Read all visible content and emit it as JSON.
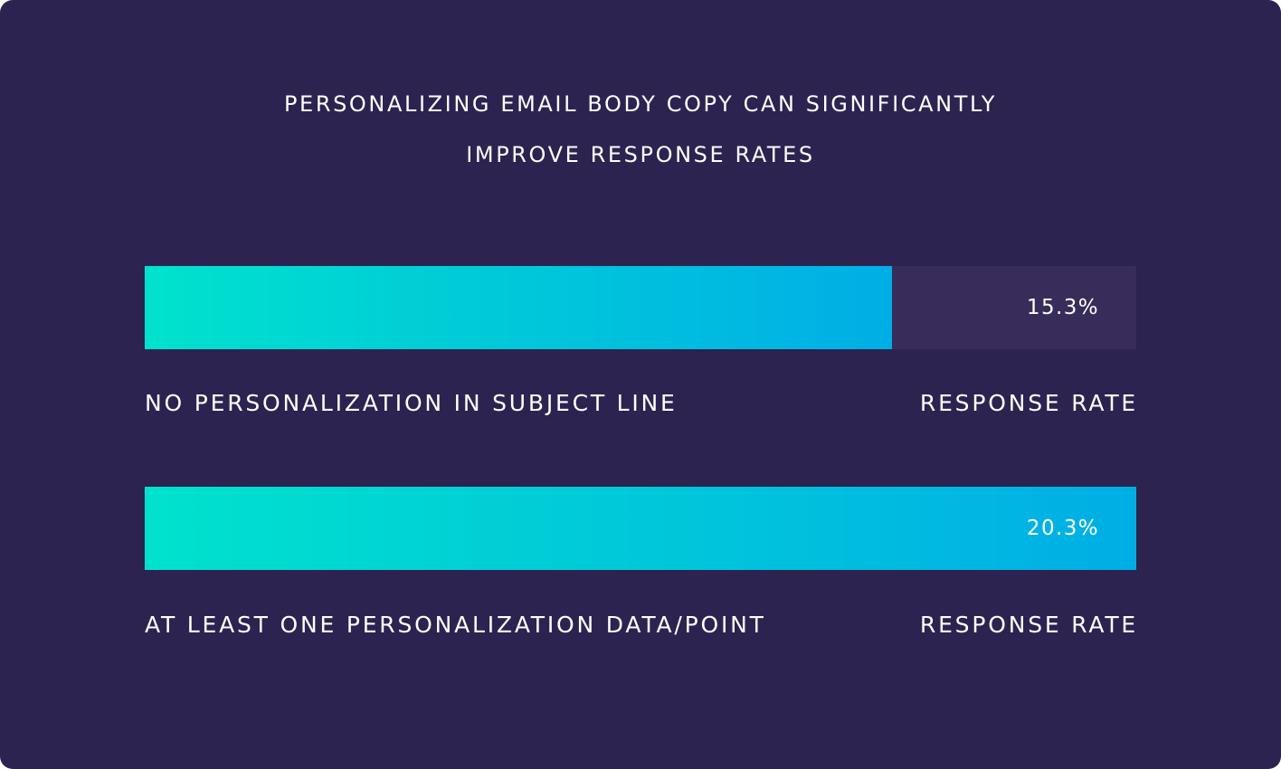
{
  "colors": {
    "background": "#2d2350",
    "track": "#382d5a",
    "gradient_start": "#00e2cd",
    "gradient_end": "#00aee6",
    "text": "#ffffff"
  },
  "chart_data": {
    "type": "bar",
    "orientation": "horizontal",
    "title": "PERSONALIZING EMAIL BODY COPY CAN SIGNIFICANTLY IMPROVE RESPONSE RATES",
    "title_lines": [
      "PERSONALIZING EMAIL BODY COPY CAN SIGNIFICANTLY",
      "IMPROVE RESPONSE RATES"
    ],
    "categories": [
      "NO PERSONALIZATION IN SUBJECT LINE",
      "AT LEAST ONE PERSONALIZATION DATA/POINT"
    ],
    "values": [
      15.3,
      20.3
    ],
    "value_labels": [
      "15.3%",
      "20.3%"
    ],
    "metric_label": "RESPONSE RATE",
    "xlim": [
      0,
      20.3
    ],
    "grid": false,
    "legend": "none"
  }
}
